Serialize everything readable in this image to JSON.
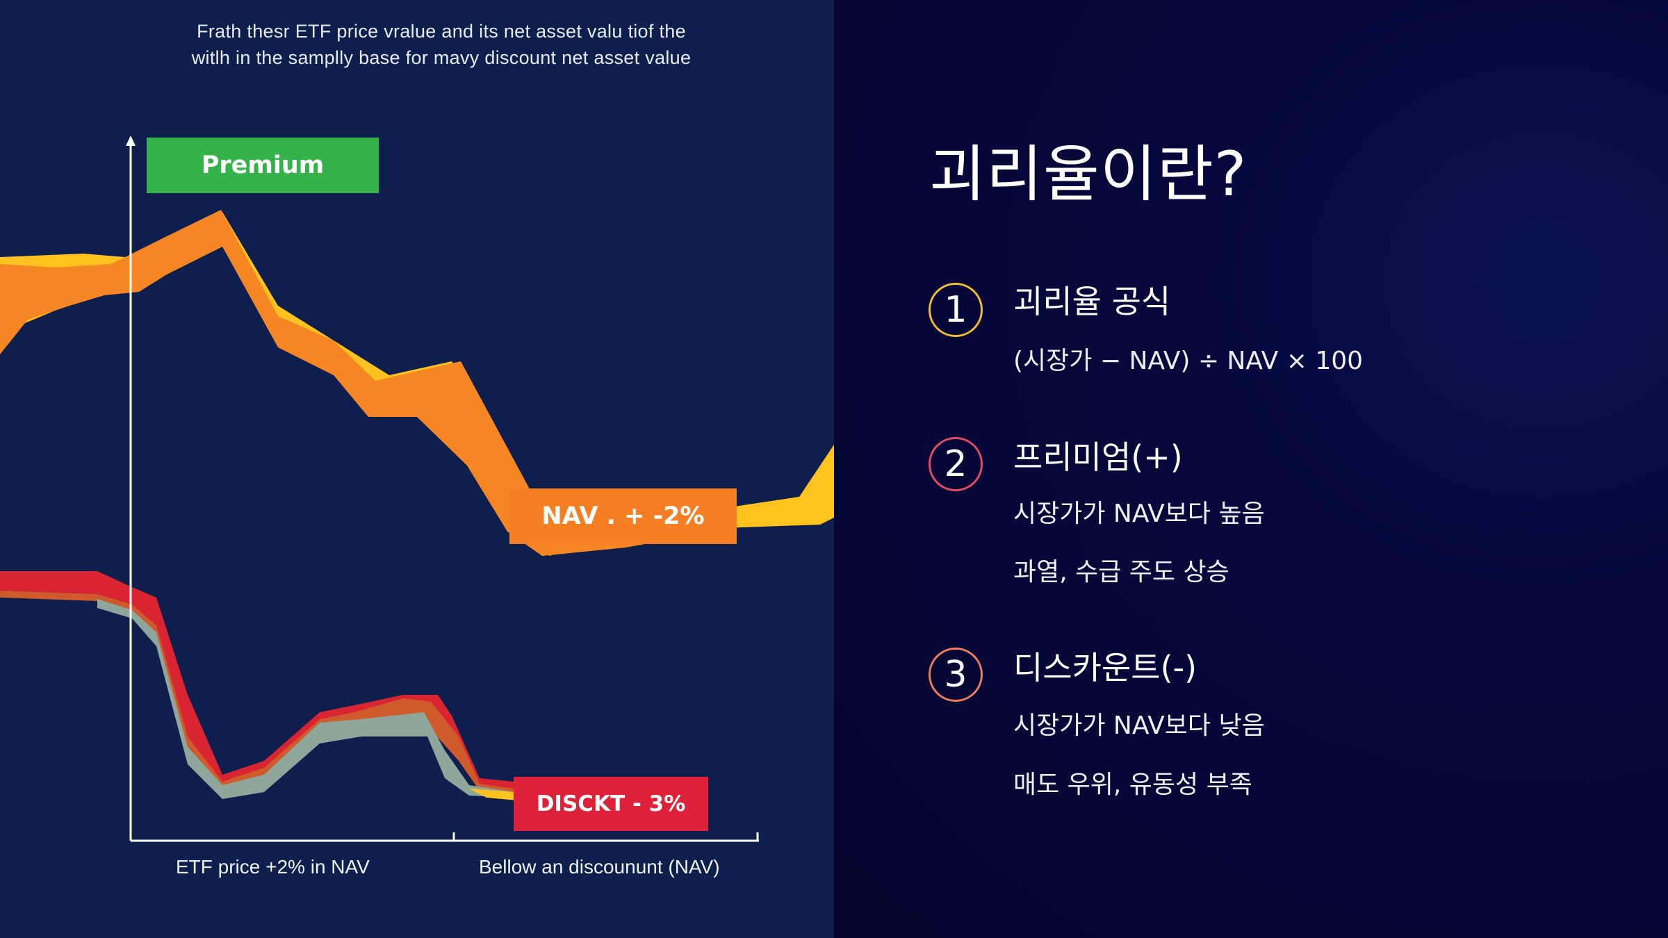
{
  "left": {
    "caption_line1": "Frath thesr ETF price vralue and its net asset valu tiof the",
    "caption_line2": "witlh in the samplly base for mavy discount net asset value",
    "tag_premium": "Premium",
    "tag_nav": "NAV . + -2%",
    "tag_discount": "DISCKT - 3%",
    "axis_label_left": "ETF price +2% in NAV",
    "axis_label_right": "Bellow an discoununt (NAV)"
  },
  "colors": {
    "orange": "#f57f22",
    "yellow": "#ffc21e",
    "red": "#dc2139",
    "green": "#36b24a",
    "sage": "#8fa79a"
  },
  "right": {
    "title": "괴리율이란?",
    "items": [
      {
        "number": "1",
        "heading": "괴리율 공식",
        "lines": [
          "(시장가 − NAV) ÷ NAV × 100"
        ]
      },
      {
        "number": "2",
        "heading": "프리미엄(+)",
        "lines": [
          "시장가가 NAV보다 높음",
          "과열, 수급 주도 상승"
        ]
      },
      {
        "number": "3",
        "heading": "디스카운트(-)",
        "lines": [
          "시장가가 NAV보다 낮음",
          "매도 우위, 유동성 부족"
        ]
      }
    ]
  }
}
